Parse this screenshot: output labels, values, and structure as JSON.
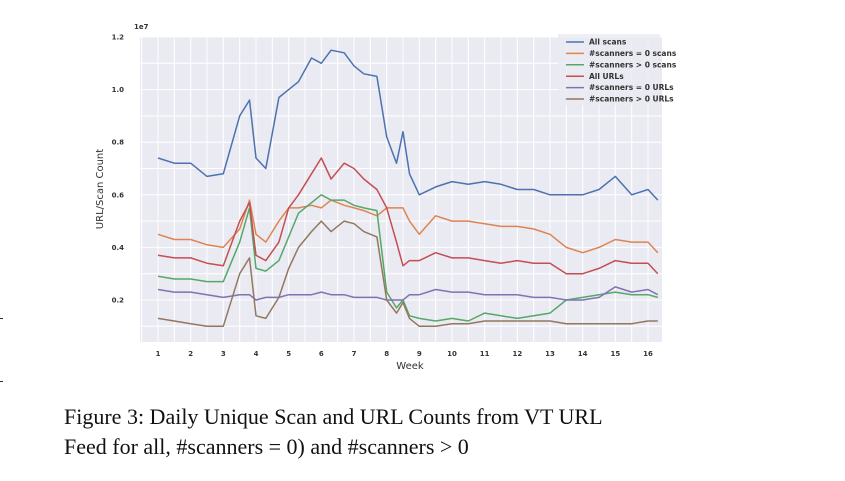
{
  "chart_data": {
    "type": "line",
    "xlabel": "Week",
    "ylabel": "URL/Scan Count",
    "y_scale_label": "1e7",
    "xlim": [
      0.5,
      16.5
    ],
    "ylim": [
      0.05,
      1.2
    ],
    "x_ticks": [
      "1",
      "2",
      "3",
      "4",
      "5",
      "6",
      "7",
      "8",
      "9",
      "10",
      "11",
      "12",
      "13",
      "14",
      "15",
      "16"
    ],
    "y_ticks": [
      "0.2",
      "0.4",
      "0.6",
      "0.8",
      "1.0",
      "1.2"
    ],
    "grid": true,
    "legend_position": "top-right",
    "series": [
      {
        "name": "All scans",
        "color": "#4c72b0",
        "x": [
          1,
          1.5,
          2,
          2.5,
          3,
          3.5,
          3.8,
          4,
          4.3,
          4.7,
          5,
          5.3,
          5.7,
          6,
          6.3,
          6.7,
          7,
          7.3,
          7.7,
          8,
          8.3,
          8.5,
          8.7,
          9,
          9.5,
          10,
          10.5,
          11,
          11.5,
          12,
          12.5,
          13,
          13.5,
          14,
          14.5,
          15,
          15.5,
          16,
          16.3
        ],
        "y": [
          0.74,
          0.72,
          0.72,
          0.67,
          0.68,
          0.9,
          0.96,
          0.74,
          0.7,
          0.97,
          1.0,
          1.03,
          1.12,
          1.1,
          1.15,
          1.14,
          1.09,
          1.06,
          1.05,
          0.82,
          0.72,
          0.84,
          0.68,
          0.6,
          0.63,
          0.65,
          0.64,
          0.65,
          0.64,
          0.62,
          0.62,
          0.6,
          0.6,
          0.6,
          0.62,
          0.67,
          0.6,
          0.62,
          0.58
        ]
      },
      {
        "name": "#scanners = 0 scans",
        "color": "#dd8452",
        "x": [
          1,
          1.5,
          2,
          2.5,
          3,
          3.5,
          3.8,
          4,
          4.3,
          4.7,
          5,
          5.3,
          5.7,
          6,
          6.3,
          6.7,
          7,
          7.3,
          7.7,
          8,
          8.3,
          8.5,
          8.7,
          9,
          9.5,
          10,
          10.5,
          11,
          11.5,
          12,
          12.5,
          13,
          13.5,
          14,
          14.5,
          15,
          15.5,
          16,
          16.3
        ],
        "y": [
          0.45,
          0.43,
          0.43,
          0.41,
          0.4,
          0.47,
          0.58,
          0.45,
          0.42,
          0.5,
          0.55,
          0.55,
          0.56,
          0.55,
          0.58,
          0.56,
          0.55,
          0.54,
          0.52,
          0.55,
          0.55,
          0.55,
          0.5,
          0.45,
          0.52,
          0.5,
          0.5,
          0.49,
          0.48,
          0.48,
          0.47,
          0.45,
          0.4,
          0.38,
          0.4,
          0.43,
          0.42,
          0.42,
          0.38
        ]
      },
      {
        "name": "#scanners > 0 scans",
        "color": "#55a868",
        "x": [
          1,
          1.5,
          2,
          2.5,
          3,
          3.5,
          3.8,
          4,
          4.3,
          4.7,
          5,
          5.3,
          5.7,
          6,
          6.3,
          6.7,
          7,
          7.3,
          7.7,
          8,
          8.3,
          8.5,
          8.7,
          9,
          9.5,
          10,
          10.5,
          11,
          11.5,
          12,
          12.5,
          13,
          13.5,
          14,
          14.5,
          15,
          15.5,
          16,
          16.3
        ],
        "y": [
          0.29,
          0.28,
          0.28,
          0.27,
          0.27,
          0.42,
          0.55,
          0.32,
          0.31,
          0.35,
          0.44,
          0.53,
          0.57,
          0.6,
          0.58,
          0.58,
          0.56,
          0.55,
          0.54,
          0.23,
          0.17,
          0.2,
          0.14,
          0.13,
          0.12,
          0.13,
          0.12,
          0.15,
          0.14,
          0.13,
          0.14,
          0.15,
          0.2,
          0.21,
          0.22,
          0.23,
          0.22,
          0.22,
          0.21
        ]
      },
      {
        "name": "All URLs",
        "color": "#c44e52",
        "x": [
          1,
          1.5,
          2,
          2.5,
          3,
          3.5,
          3.8,
          4,
          4.3,
          4.7,
          5,
          5.3,
          5.7,
          6,
          6.3,
          6.7,
          7,
          7.3,
          7.7,
          8,
          8.3,
          8.5,
          8.7,
          9,
          9.5,
          10,
          10.5,
          11,
          11.5,
          12,
          12.5,
          13,
          13.5,
          14,
          14.5,
          15,
          15.5,
          16,
          16.3
        ],
        "y": [
          0.37,
          0.36,
          0.36,
          0.34,
          0.33,
          0.5,
          0.57,
          0.37,
          0.35,
          0.42,
          0.55,
          0.6,
          0.68,
          0.74,
          0.66,
          0.72,
          0.7,
          0.66,
          0.62,
          0.55,
          0.42,
          0.33,
          0.35,
          0.35,
          0.38,
          0.36,
          0.36,
          0.35,
          0.34,
          0.35,
          0.34,
          0.34,
          0.3,
          0.3,
          0.32,
          0.35,
          0.34,
          0.34,
          0.3
        ]
      },
      {
        "name": "#scanners = 0 URLs",
        "color": "#8172b3",
        "x": [
          1,
          1.5,
          2,
          2.5,
          3,
          3.5,
          3.8,
          4,
          4.3,
          4.7,
          5,
          5.3,
          5.7,
          6,
          6.3,
          6.7,
          7,
          7.3,
          7.7,
          8,
          8.3,
          8.5,
          8.7,
          9,
          9.5,
          10,
          10.5,
          11,
          11.5,
          12,
          12.5,
          13,
          13.5,
          14,
          14.5,
          15,
          15.5,
          16,
          16.3
        ],
        "y": [
          0.24,
          0.23,
          0.23,
          0.22,
          0.21,
          0.22,
          0.22,
          0.2,
          0.21,
          0.21,
          0.22,
          0.22,
          0.22,
          0.23,
          0.22,
          0.22,
          0.21,
          0.21,
          0.21,
          0.2,
          0.2,
          0.2,
          0.22,
          0.22,
          0.24,
          0.23,
          0.23,
          0.22,
          0.22,
          0.22,
          0.21,
          0.21,
          0.2,
          0.2,
          0.21,
          0.25,
          0.23,
          0.24,
          0.22
        ]
      },
      {
        "name": "#scanners > 0 URLs",
        "color": "#937860",
        "x": [
          1,
          1.5,
          2,
          2.5,
          3,
          3.5,
          3.8,
          4,
          4.3,
          4.7,
          5,
          5.3,
          5.7,
          6,
          6.3,
          6.7,
          7,
          7.3,
          7.7,
          8,
          8.3,
          8.5,
          8.7,
          9,
          9.5,
          10,
          10.5,
          11,
          11.5,
          12,
          12.5,
          13,
          13.5,
          14,
          14.5,
          15,
          15.5,
          16,
          16.3
        ],
        "y": [
          0.13,
          0.12,
          0.11,
          0.1,
          0.1,
          0.3,
          0.36,
          0.14,
          0.13,
          0.21,
          0.32,
          0.4,
          0.46,
          0.5,
          0.46,
          0.5,
          0.49,
          0.46,
          0.44,
          0.2,
          0.15,
          0.19,
          0.13,
          0.1,
          0.1,
          0.11,
          0.11,
          0.12,
          0.12,
          0.12,
          0.12,
          0.12,
          0.11,
          0.11,
          0.11,
          0.11,
          0.11,
          0.12,
          0.12
        ]
      }
    ]
  },
  "caption": {
    "line1": "Figure 3: Daily Unique Scan and URL Counts from VT URL",
    "line2": "Feed for all, #scanners = 0) and #scanners > 0"
  }
}
